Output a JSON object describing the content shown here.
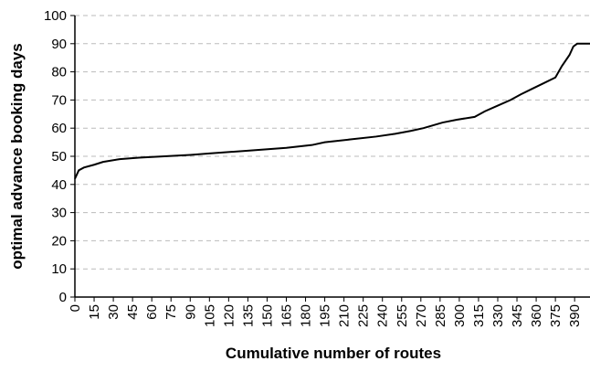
{
  "chart_data": {
    "type": "line",
    "x_label": "Cumulative number of routes",
    "y_label": "optimal advance booking days",
    "series": [
      {
        "color": "#000000",
        "x": [
          0,
          3,
          7,
          15,
          22,
          35,
          50,
          70,
          90,
          105,
          135,
          165,
          185,
          195,
          215,
          235,
          250,
          262,
          272,
          287,
          298,
          312,
          320,
          330,
          340,
          348,
          357,
          366,
          375,
          380,
          386,
          389,
          392,
          402
        ],
        "values": [
          42,
          45,
          46,
          47,
          48,
          49,
          49.5,
          50,
          50.5,
          51,
          52,
          53,
          54,
          55,
          56,
          57,
          58,
          59,
          60,
          62,
          63,
          64,
          66,
          68,
          70,
          72,
          74,
          76,
          78,
          82,
          86,
          89,
          90,
          90
        ]
      }
    ],
    "xlim": [
      0,
      402
    ],
    "xticks": [
      0,
      15,
      30,
      45,
      60,
      75,
      90,
      105,
      120,
      135,
      150,
      165,
      180,
      195,
      210,
      225,
      240,
      255,
      270,
      285,
      300,
      315,
      330,
      345,
      360,
      375,
      390
    ],
    "ylim": [
      0,
      100
    ],
    "yticks": [
      0,
      10,
      20,
      30,
      40,
      50,
      60,
      70,
      80,
      90,
      100
    ],
    "grid": true
  }
}
